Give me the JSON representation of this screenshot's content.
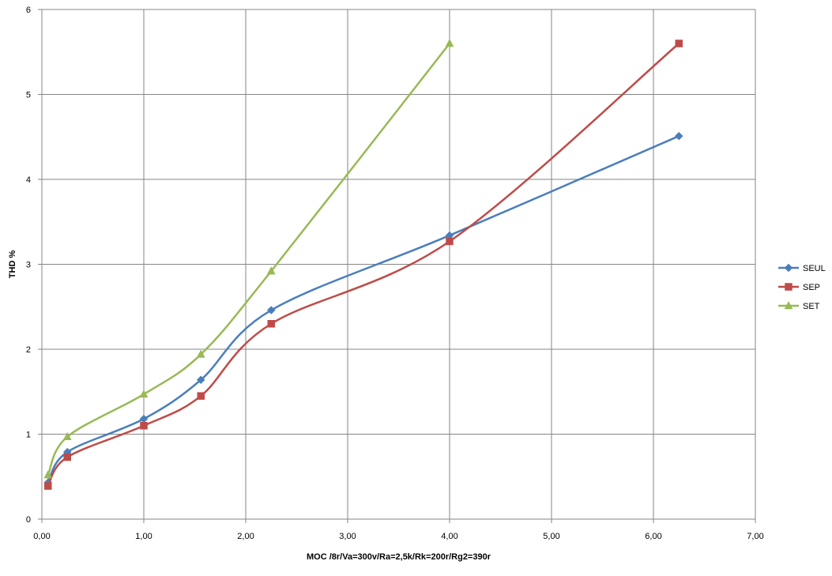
{
  "chart_data": {
    "type": "line",
    "title": "",
    "xlabel": "MOC /8r/Va=300v/Ra=2,5k/Rk=200r/Rg2=390r",
    "ylabel": "THD %",
    "xlim": [
      0,
      7
    ],
    "ylim": [
      0,
      6
    ],
    "x_ticks": [
      0,
      1,
      2,
      3,
      4,
      5,
      6,
      7
    ],
    "x_tick_labels": [
      "0,00",
      "1,00",
      "2,00",
      "3,00",
      "4,00",
      "5,00",
      "6,00",
      "7,00"
    ],
    "y_ticks": [
      0,
      1,
      2,
      3,
      4,
      5,
      6
    ],
    "y_tick_labels": [
      "0",
      "1",
      "2",
      "3",
      "4",
      "5",
      "6"
    ],
    "grid": true,
    "smooth": true,
    "legend_position": "right",
    "series": [
      {
        "name": "SEUL",
        "color": "#4a7ebb",
        "marker": "diamond",
        "points": [
          [
            0.06,
            0.43
          ],
          [
            0.25,
            0.79
          ],
          [
            1.0,
            1.18
          ],
          [
            1.56,
            1.64
          ],
          [
            2.25,
            2.46
          ],
          [
            4.0,
            3.34
          ],
          [
            6.25,
            4.51
          ]
        ]
      },
      {
        "name": "SEP",
        "color": "#be4b48",
        "marker": "square",
        "points": [
          [
            0.06,
            0.39
          ],
          [
            0.25,
            0.73
          ],
          [
            1.0,
            1.1
          ],
          [
            1.56,
            1.45
          ],
          [
            2.25,
            2.3
          ],
          [
            4.0,
            3.27
          ],
          [
            6.25,
            5.6
          ]
        ]
      },
      {
        "name": "SET",
        "color": "#98b954",
        "marker": "triangle",
        "points": [
          [
            0.06,
            0.52
          ],
          [
            0.25,
            0.97
          ],
          [
            1.0,
            1.47
          ],
          [
            1.56,
            1.94
          ],
          [
            2.25,
            2.92
          ],
          [
            4.0,
            5.6
          ]
        ]
      }
    ]
  }
}
